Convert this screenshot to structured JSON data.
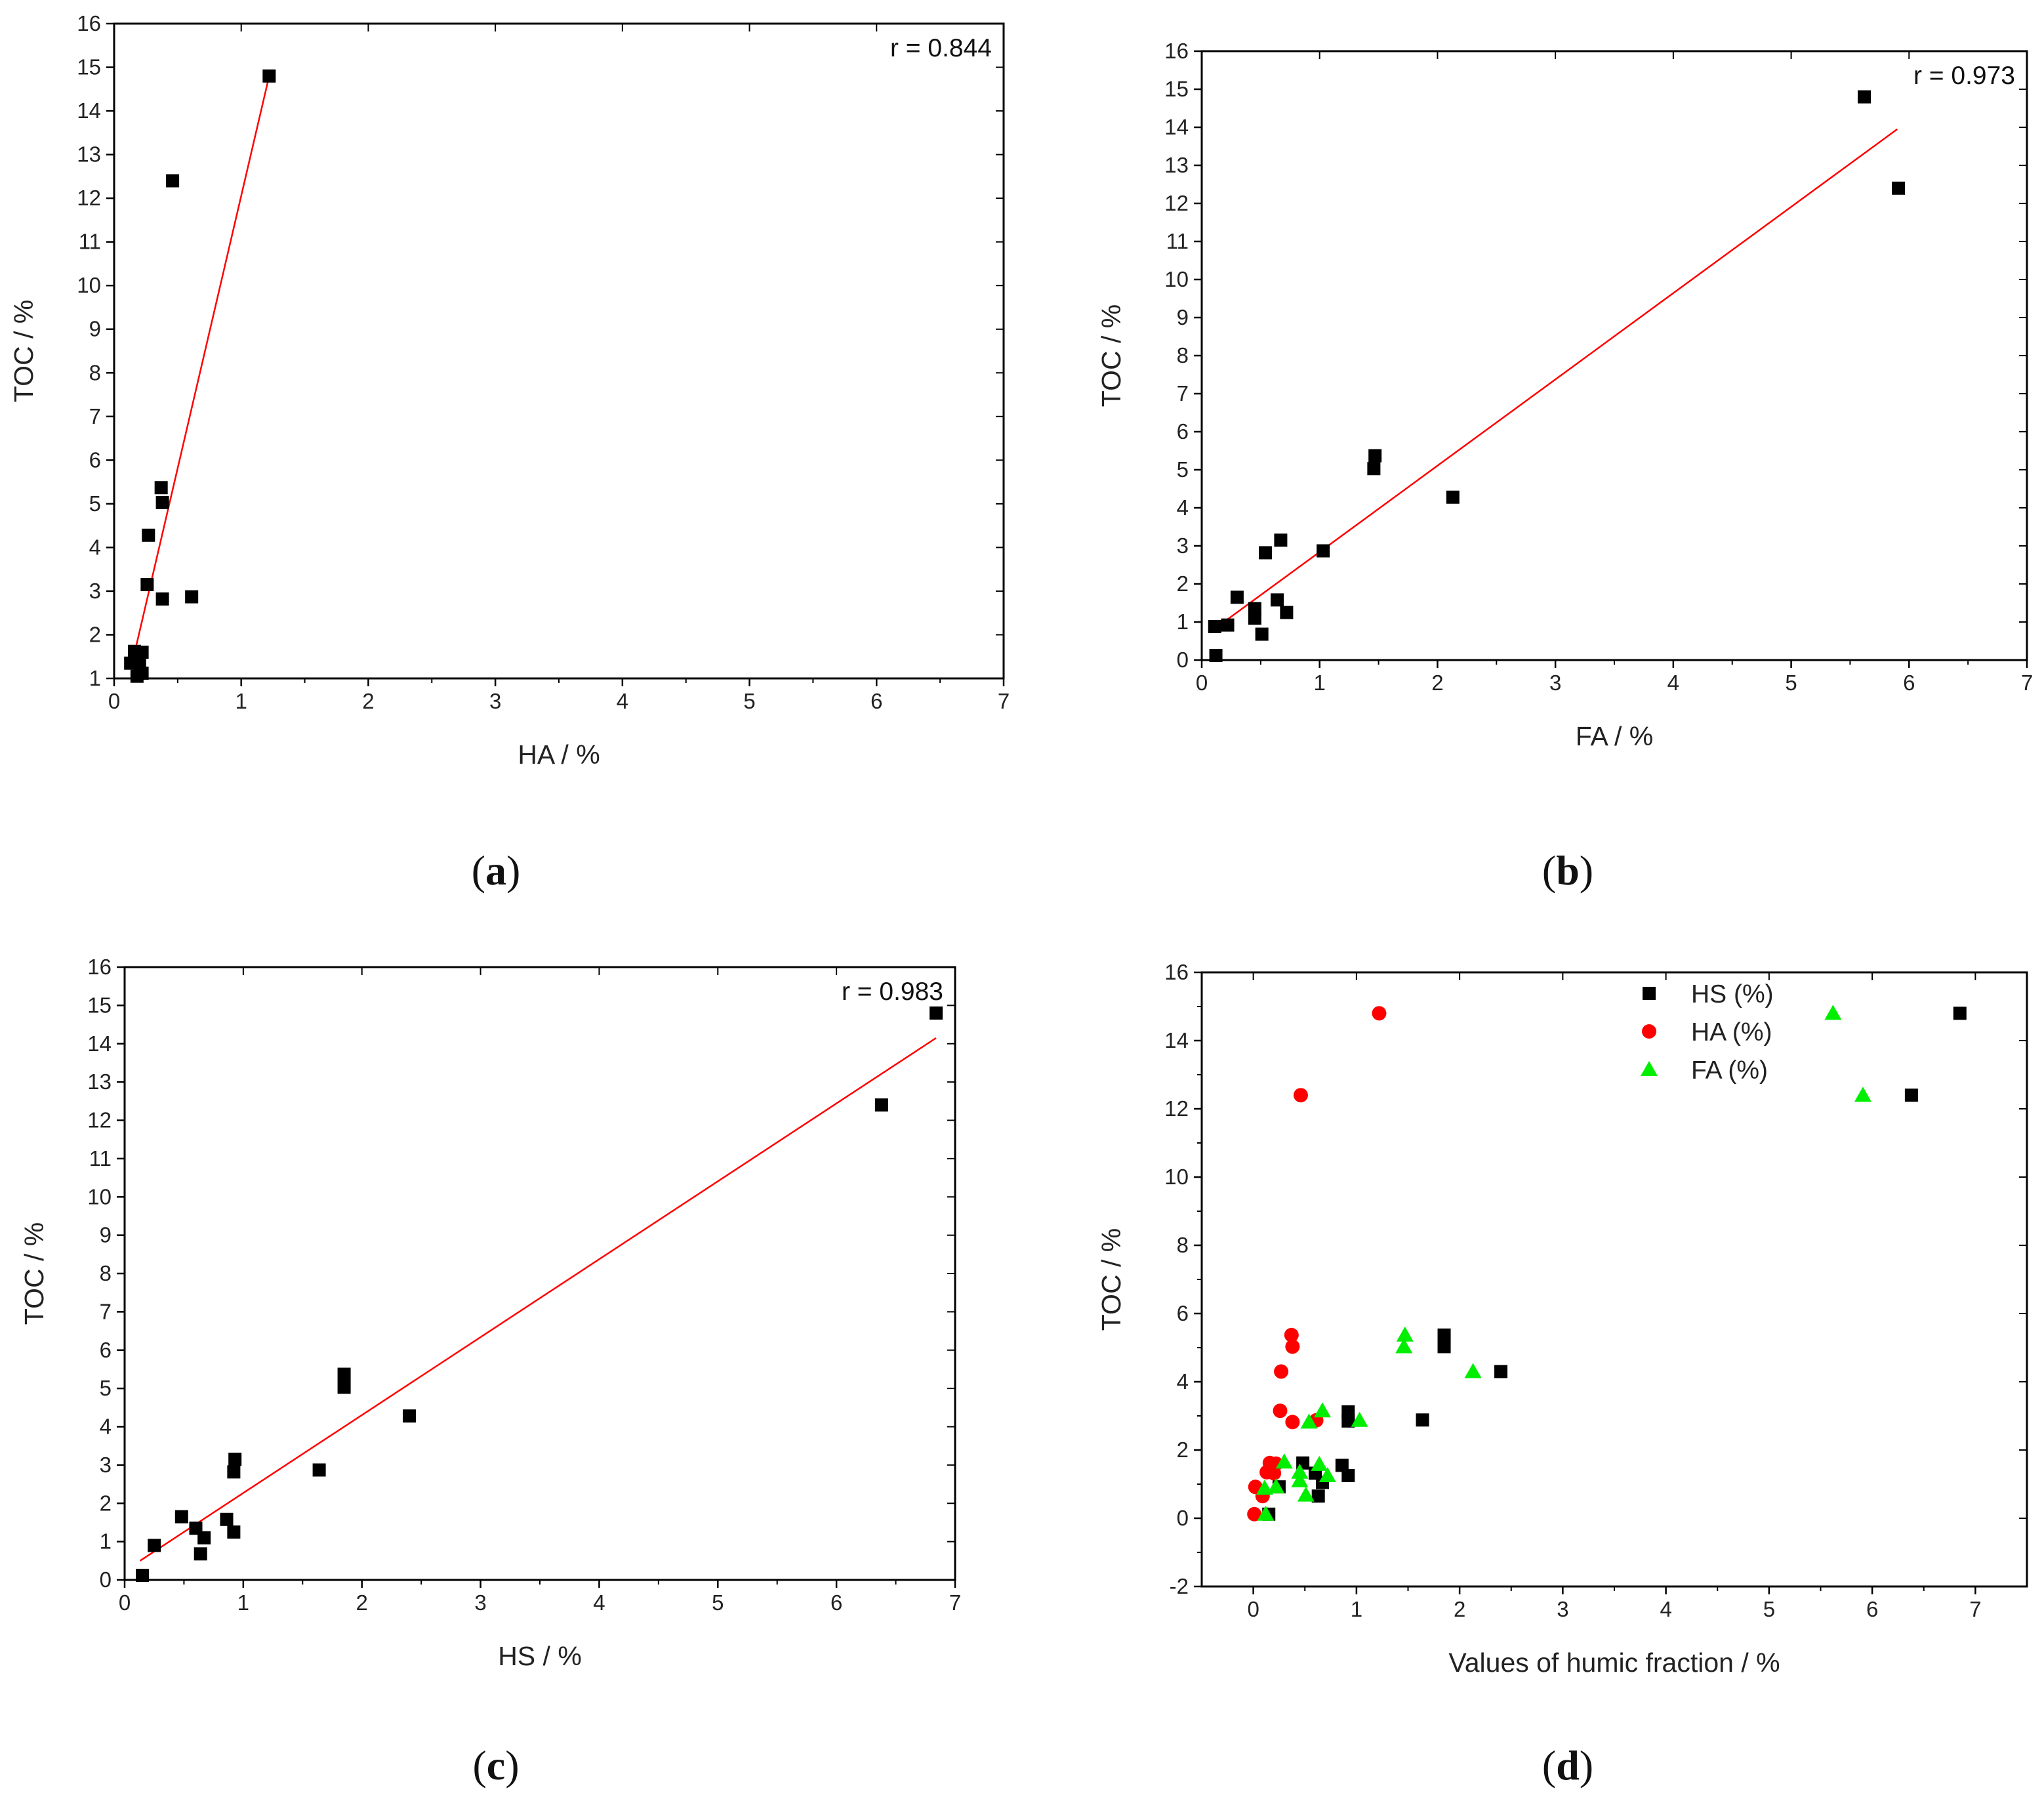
{
  "figure": {
    "captions": [
      "a",
      "b",
      "c",
      "d"
    ]
  },
  "chart_data": [
    {
      "id": "a",
      "type": "scatter",
      "xlabel": "HA / %",
      "ylabel": "TOC / %",
      "xlim": [
        0,
        7
      ],
      "ylim": [
        1,
        16
      ],
      "xticks": [
        0,
        1,
        2,
        3,
        4,
        5,
        6,
        7
      ],
      "yticks": [
        1,
        2,
        3,
        4,
        5,
        6,
        7,
        8,
        9,
        10,
        11,
        12,
        13,
        14,
        15,
        16
      ],
      "annotation": "r = 0.844",
      "annotation_position": "top-right",
      "series": [
        {
          "name": "HA",
          "marker": "square",
          "color": "#000000",
          "x": [
            1.22,
            0.46,
            0.37,
            0.38,
            0.27,
            0.26,
            0.38,
            0.61,
            0.16,
            0.22,
            0.13,
            0.2,
            0.22,
            0.18
          ],
          "y": [
            14.8,
            12.4,
            5.37,
            5.03,
            4.28,
            3.15,
            2.82,
            2.87,
            1.62,
            1.6,
            1.35,
            1.32,
            1.12,
            1.05
          ]
        }
      ],
      "fit": {
        "color": "#ff0000",
        "x": [
          0.13,
          1.22
        ],
        "y": [
          1.2,
          14.8
        ]
      }
    },
    {
      "id": "b",
      "type": "scatter",
      "xlabel": "FA  / %",
      "ylabel": "TOC / %",
      "xlim": [
        0,
        7
      ],
      "ylim": [
        0,
        16
      ],
      "xticks": [
        0,
        1,
        2,
        3,
        4,
        5,
        6,
        7
      ],
      "yticks": [
        0,
        1,
        2,
        3,
        4,
        5,
        6,
        7,
        8,
        9,
        10,
        11,
        12,
        13,
        14,
        15,
        16
      ],
      "annotation": "r = 0.973",
      "annotation_position": "top-right",
      "series": [
        {
          "name": "FA",
          "marker": "square",
          "color": "#000000",
          "x": [
            5.62,
            5.91,
            1.47,
            1.46,
            2.13,
            1.03,
            0.67,
            0.54,
            0.3,
            0.45,
            0.45,
            0.64,
            0.72,
            0.22,
            0.11,
            0.51,
            0.12
          ],
          "y": [
            14.8,
            12.4,
            5.37,
            5.03,
            4.28,
            2.87,
            3.15,
            2.82,
            1.65,
            1.35,
            1.1,
            1.58,
            1.25,
            0.92,
            0.88,
            0.68,
            0.12
          ]
        }
      ],
      "fit": {
        "color": "#ff0000",
        "x": [
          0.1,
          5.9
        ],
        "y": [
          0.8,
          13.95
        ]
      }
    },
    {
      "id": "c",
      "type": "scatter",
      "xlabel": "HS / %",
      "ylabel": "TOC / %",
      "xlim": [
        0,
        7
      ],
      "ylim": [
        0,
        16
      ],
      "xticks": [
        0,
        1,
        2,
        3,
        4,
        5,
        6,
        7
      ],
      "yticks": [
        0,
        1,
        2,
        3,
        4,
        5,
        6,
        7,
        8,
        9,
        10,
        11,
        12,
        13,
        14,
        15,
        16
      ],
      "annotation": "r = 0.983",
      "annotation_position": "top-right",
      "series": [
        {
          "name": "HS",
          "marker": "square",
          "color": "#000000",
          "x": [
            6.84,
            6.38,
            1.85,
            1.85,
            2.4,
            1.64,
            0.93,
            0.92,
            0.48,
            0.86,
            0.6,
            0.92,
            0.67,
            0.25,
            0.64,
            0.15
          ],
          "y": [
            14.8,
            12.4,
            5.37,
            5.03,
            4.28,
            2.87,
            3.15,
            2.82,
            1.65,
            1.58,
            1.35,
            1.25,
            1.1,
            0.9,
            0.68,
            0.12
          ]
        }
      ],
      "fit": {
        "color": "#ff0000",
        "x": [
          0.13,
          6.84
        ],
        "y": [
          0.5,
          14.15
        ]
      }
    },
    {
      "id": "d",
      "type": "scatter",
      "xlabel": "Values of humic fraction / %",
      "ylabel": "TOC / %",
      "xlim": [
        -0.5,
        7.5
      ],
      "ylim": [
        -2,
        16
      ],
      "xticks": [
        0,
        1,
        2,
        3,
        4,
        5,
        6,
        7
      ],
      "yticks": [
        -2,
        0,
        2,
        4,
        6,
        8,
        10,
        12,
        14,
        16
      ],
      "legend_position": "top-center",
      "series": [
        {
          "name": "HS (%)",
          "marker": "square",
          "color": "#000000",
          "x": [
            6.85,
            6.38,
            1.85,
            1.85,
            2.4,
            1.64,
            0.92,
            0.92,
            0.48,
            0.86,
            0.6,
            0.92,
            0.67,
            0.25,
            0.63,
            0.15
          ],
          "y": [
            14.8,
            12.4,
            5.37,
            5.03,
            4.3,
            2.88,
            3.12,
            2.85,
            1.62,
            1.55,
            1.32,
            1.25,
            1.05,
            0.92,
            0.65,
            0.12
          ]
        },
        {
          "name": "HA (%)",
          "marker": "circle",
          "color": "#ff0000",
          "x": [
            1.22,
            0.46,
            0.37,
            0.38,
            0.27,
            0.26,
            0.38,
            0.61,
            0.16,
            0.22,
            0.13,
            0.2,
            0.02,
            0.09,
            0.01
          ],
          "y": [
            14.8,
            12.4,
            5.37,
            5.03,
            4.3,
            3.15,
            2.82,
            2.87,
            1.62,
            1.6,
            1.35,
            1.32,
            0.92,
            0.65,
            0.12
          ]
        },
        {
          "name": "FA (%)",
          "marker": "triangle",
          "color": "#00ee00",
          "x": [
            5.62,
            5.91,
            1.47,
            1.46,
            2.13,
            1.03,
            0.67,
            0.54,
            0.3,
            0.45,
            0.45,
            0.64,
            0.72,
            0.22,
            0.11,
            0.51,
            0.12
          ],
          "y": [
            14.8,
            12.4,
            5.37,
            5.03,
            4.3,
            2.87,
            3.15,
            2.82,
            1.65,
            1.35,
            1.1,
            1.58,
            1.25,
            0.92,
            0.88,
            0.68,
            0.12
          ]
        }
      ]
    }
  ]
}
